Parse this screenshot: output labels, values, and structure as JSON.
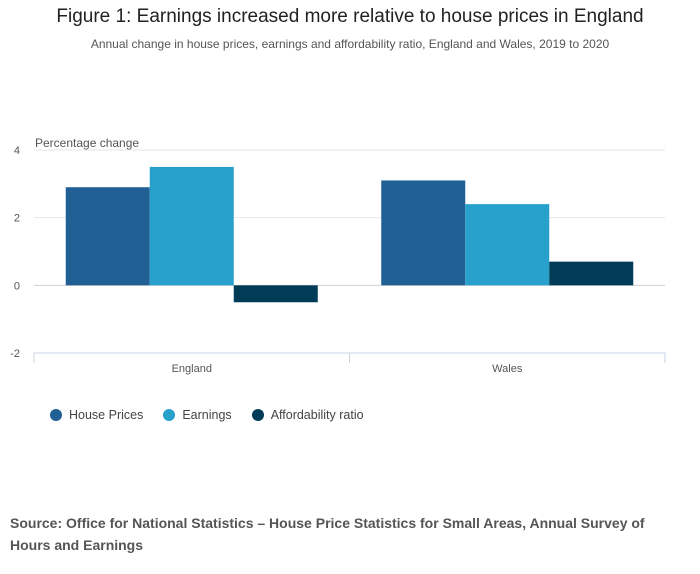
{
  "chart_data": {
    "type": "bar",
    "title": "Figure 1: Earnings increased more relative to house prices in England",
    "subtitle": "Annual change in house prices, earnings and affordability ratio, England and Wales, 2019 to 2020",
    "ylabel": "Percentage change",
    "xlabel": "",
    "categories": [
      "England",
      "Wales"
    ],
    "ylim": [
      -2,
      4
    ],
    "yticks": [
      4,
      2,
      0,
      -2
    ],
    "grid": true,
    "legend_position": "bottom-left",
    "series": [
      {
        "name": "House Prices",
        "color": "#206095",
        "values": [
          2.9,
          3.1
        ]
      },
      {
        "name": "Earnings",
        "color": "#27a0cc",
        "values": [
          3.5,
          2.4
        ]
      },
      {
        "name": "Affordability ratio",
        "color": "#003c57",
        "values": [
          -0.5,
          0.7
        ]
      }
    ]
  },
  "source": "Source: Office for National Statistics – House Price Statistics for Small Areas, Annual Survey of Hours and Earnings"
}
